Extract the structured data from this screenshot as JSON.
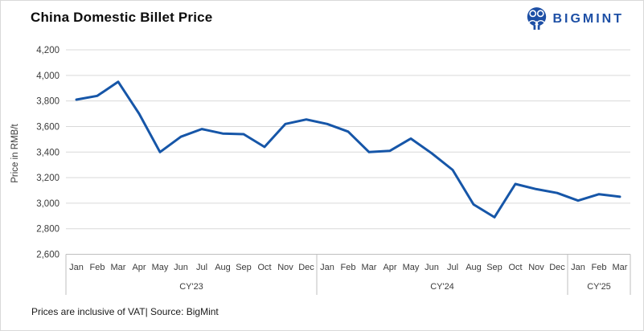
{
  "header": {
    "title": "China Domestic Billet Price",
    "logo_text": "BIGMINT"
  },
  "footer": {
    "note": "Prices are inclusive of VAT| Source: BigMint"
  },
  "colors": {
    "line": "#1656a8",
    "logo_blue": "#1d4fa5",
    "gridline": "#d9d9d9",
    "axis_line": "#bfbfbf",
    "tick_text": "#3b3b3b"
  },
  "chart_data": {
    "type": "line",
    "title": "China Domestic Billet Price",
    "xlabel": "",
    "ylabel": "Price in RMB/t",
    "ylim": [
      2600,
      4200
    ],
    "ytick_step": 200,
    "ytick_labels": [
      "2,600",
      "2,800",
      "3,000",
      "3,200",
      "3,400",
      "3,600",
      "3,800",
      "4,000",
      "4,200"
    ],
    "grid": true,
    "legend": "none",
    "groups": [
      {
        "label": "CY'23",
        "categories": [
          "Jan",
          "Feb",
          "Mar",
          "Apr",
          "May",
          "Jun",
          "Jul",
          "Aug",
          "Sep",
          "Oct",
          "Nov",
          "Dec"
        ]
      },
      {
        "label": "CY'24",
        "categories": [
          "Jan",
          "Feb",
          "Mar",
          "Apr",
          "May",
          "Jun",
          "Jul",
          "Aug",
          "Sep",
          "Oct",
          "Nov",
          "Dec"
        ]
      },
      {
        "label": "CY'25",
        "categories": [
          "Jan",
          "Feb",
          "Mar"
        ]
      }
    ],
    "values": [
      3810,
      3840,
      3950,
      3700,
      3400,
      3520,
      3580,
      3545,
      3540,
      3440,
      3620,
      3655,
      3620,
      3560,
      3400,
      3410,
      3505,
      3390,
      3260,
      2990,
      2890,
      3150,
      3110,
      3080,
      3020,
      3070,
      3050
    ]
  }
}
